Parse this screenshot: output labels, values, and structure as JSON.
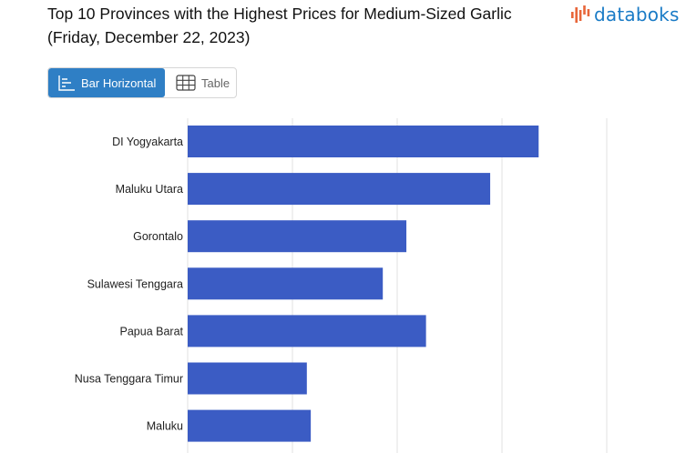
{
  "header": {
    "title": "Top 10 Provinces with the Highest Prices for Medium-Sized Garlic (Friday, December 22, 2023)",
    "logo_text": "databoks"
  },
  "view_toggle": {
    "bar_label": "Bar Horizontal",
    "table_label": "Table",
    "active": "bar"
  },
  "colors": {
    "bar": "#3b5cc4",
    "accent": "#2f7fc5",
    "logo": "#1a7bc6",
    "logo_icon": "#e8663a"
  },
  "icons": {
    "bar_icon": "bar-horizontal-icon",
    "table_icon": "table-grid-icon",
    "logo_icon": "databoks-logo-icon"
  },
  "chart_data": {
    "type": "bar",
    "orientation": "horizontal",
    "categories": [
      "DI Yogyakarta",
      "Maluku Utara",
      "Gorontalo",
      "Sulawesi Tenggara",
      "Papua Barat",
      "Nusa Tenggara Timur",
      "Maluku"
    ],
    "values": [
      67000,
      57750,
      41750,
      37250,
      45500,
      22750,
      23500
    ],
    "xlim": [
      0,
      80000
    ],
    "grid": true,
    "title": "Top 10 Provinces with the Highest Prices for Medium-Sized Garlic (Friday, December 22, 2023)",
    "xlabel": "",
    "ylabel": ""
  }
}
